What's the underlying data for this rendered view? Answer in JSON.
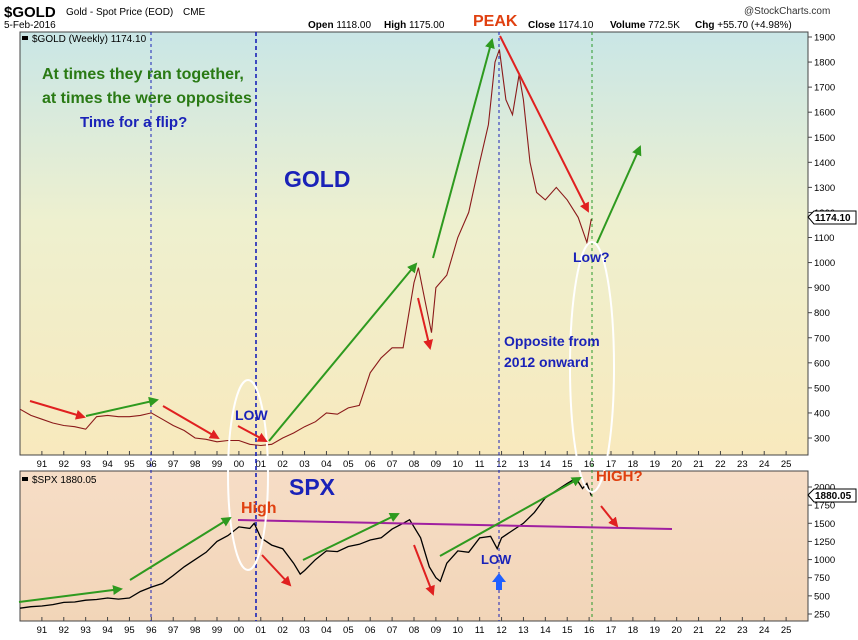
{
  "header": {
    "symbol": "$GOLD",
    "description": "Gold - Spot Price (EOD)",
    "exchange": "CME",
    "date": "5-Feb-2016",
    "open_label": "Open",
    "open_value": "1118.00",
    "high_label": "High",
    "high_value": "1175.00",
    "close_label": "Close",
    "close_value": "1174.10",
    "volume_label": "Volume",
    "volume_value": "772.5K",
    "chg_label": "Chg",
    "chg_value": "+55.70 (+4.98%)",
    "watermark": "@StockCharts.com"
  },
  "colors": {
    "gold_line": "#8b1a1a",
    "spx_line": "#000000",
    "up_arrow": "#2e9a1f",
    "down_arrow": "#e02020",
    "annotation_blue": "#1a22b8",
    "annotation_green": "#2a7a14",
    "annotation_red": "#e04010",
    "resistance": "#a020a0",
    "vline_blue": "#1a22b8",
    "vline_green": "#2a9a2a"
  },
  "chart_data": [
    {
      "type": "line",
      "series": [
        {
          "name": "$GOLD (Weekly) 1174.10",
          "x": [
            1990.0,
            1990.5,
            1991.0,
            1991.5,
            1992.0,
            1992.5,
            1993.0,
            1993.5,
            1994.0,
            1994.5,
            1995.0,
            1995.5,
            1996.0,
            1996.5,
            1997.0,
            1997.5,
            1998.0,
            1998.5,
            1999.0,
            1999.5,
            2000.0,
            2000.5,
            2001.0,
            2001.5,
            2002.0,
            2002.5,
            2003.0,
            2003.5,
            2004.0,
            2004.5,
            2005.0,
            2005.5,
            2006.0,
            2006.5,
            2007.0,
            2007.5,
            2008.0,
            2008.2,
            2008.5,
            2008.8,
            2009.0,
            2009.5,
            2010.0,
            2010.5,
            2011.0,
            2011.4,
            2011.7,
            2011.9,
            2012.2,
            2012.5,
            2012.8,
            2013.0,
            2013.3,
            2013.6,
            2014.0,
            2014.5,
            2015.0,
            2015.5,
            2015.9,
            2016.1
          ],
          "values": [
            415,
            390,
            375,
            360,
            350,
            345,
            335,
            385,
            390,
            385,
            385,
            390,
            400,
            375,
            350,
            330,
            300,
            295,
            285,
            290,
            290,
            275,
            270,
            275,
            300,
            320,
            345,
            365,
            400,
            395,
            420,
            430,
            560,
            620,
            660,
            660,
            920,
            980,
            850,
            720,
            900,
            950,
            1100,
            1200,
            1400,
            1550,
            1800,
            1850,
            1650,
            1590,
            1750,
            1650,
            1400,
            1280,
            1250,
            1300,
            1250,
            1180,
            1080,
            1174
          ]
        }
      ],
      "xlim": [
        1990,
        2026
      ],
      "ylim": [
        300,
        1900
      ],
      "y_ticks": [
        300,
        400,
        500,
        600,
        700,
        800,
        900,
        1000,
        1100,
        1200,
        1300,
        1400,
        1500,
        1600,
        1700,
        1800,
        1900
      ],
      "x_ticks": [
        "91",
        "92",
        "93",
        "94",
        "95",
        "96",
        "97",
        "98",
        "99",
        "00",
        "01",
        "02",
        "03",
        "04",
        "05",
        "06",
        "07",
        "08",
        "09",
        "10",
        "11",
        "12",
        "13",
        "14",
        "15",
        "16",
        "17",
        "18",
        "19",
        "20",
        "21",
        "22",
        "23",
        "24",
        "25"
      ],
      "price_tag": "1174.10",
      "annotations": [
        "At times they ran together,",
        "at times the were opposites",
        "Time for a flip?",
        "GOLD",
        "PEAK",
        "LOW",
        "Low?",
        "Opposite from",
        "2012 onward"
      ],
      "grid": false
    },
    {
      "type": "line",
      "series": [
        {
          "name": "$SPX 1880.05",
          "x": [
            1990.0,
            1990.5,
            1991.0,
            1991.5,
            1992.0,
            1992.5,
            1993.0,
            1993.5,
            1994.0,
            1994.5,
            1995.0,
            1995.5,
            1996.0,
            1996.5,
            1997.0,
            1997.5,
            1998.0,
            1998.5,
            1999.0,
            1999.5,
            2000.0,
            2000.5,
            2000.7,
            2001.0,
            2001.5,
            2002.0,
            2002.5,
            2002.8,
            2003.0,
            2003.5,
            2004.0,
            2004.5,
            2005.0,
            2005.5,
            2006.0,
            2006.5,
            2007.0,
            2007.5,
            2007.8,
            2008.3,
            2008.7,
            2009.0,
            2009.2,
            2009.5,
            2010.0,
            2010.5,
            2011.0,
            2011.5,
            2011.8,
            2012.0,
            2012.5,
            2013.0,
            2013.5,
            2014.0,
            2014.5,
            2015.0,
            2015.4,
            2015.7,
            2015.9,
            2016.1
          ],
          "values": [
            330,
            350,
            360,
            380,
            410,
            415,
            440,
            450,
            470,
            455,
            470,
            560,
            620,
            670,
            780,
            900,
            1000,
            1100,
            1250,
            1330,
            1450,
            1430,
            1500,
            1300,
            1200,
            1150,
            950,
            800,
            850,
            1000,
            1120,
            1110,
            1180,
            1210,
            1270,
            1300,
            1420,
            1500,
            1550,
            1300,
            900,
            750,
            700,
            950,
            1120,
            1100,
            1300,
            1320,
            1150,
            1300,
            1400,
            1500,
            1650,
            1850,
            1950,
            2050,
            2120,
            1980,
            2050,
            1880
          ]
        }
      ],
      "xlim": [
        1990,
        2026
      ],
      "ylim": [
        150,
        2200
      ],
      "y_ticks": [
        250,
        500,
        750,
        1000,
        1250,
        1500,
        1750,
        2000
      ],
      "price_tag": "1880.05",
      "annotations": [
        "SPX",
        "High",
        "LOW",
        "HIGH?"
      ],
      "grid": false
    }
  ]
}
